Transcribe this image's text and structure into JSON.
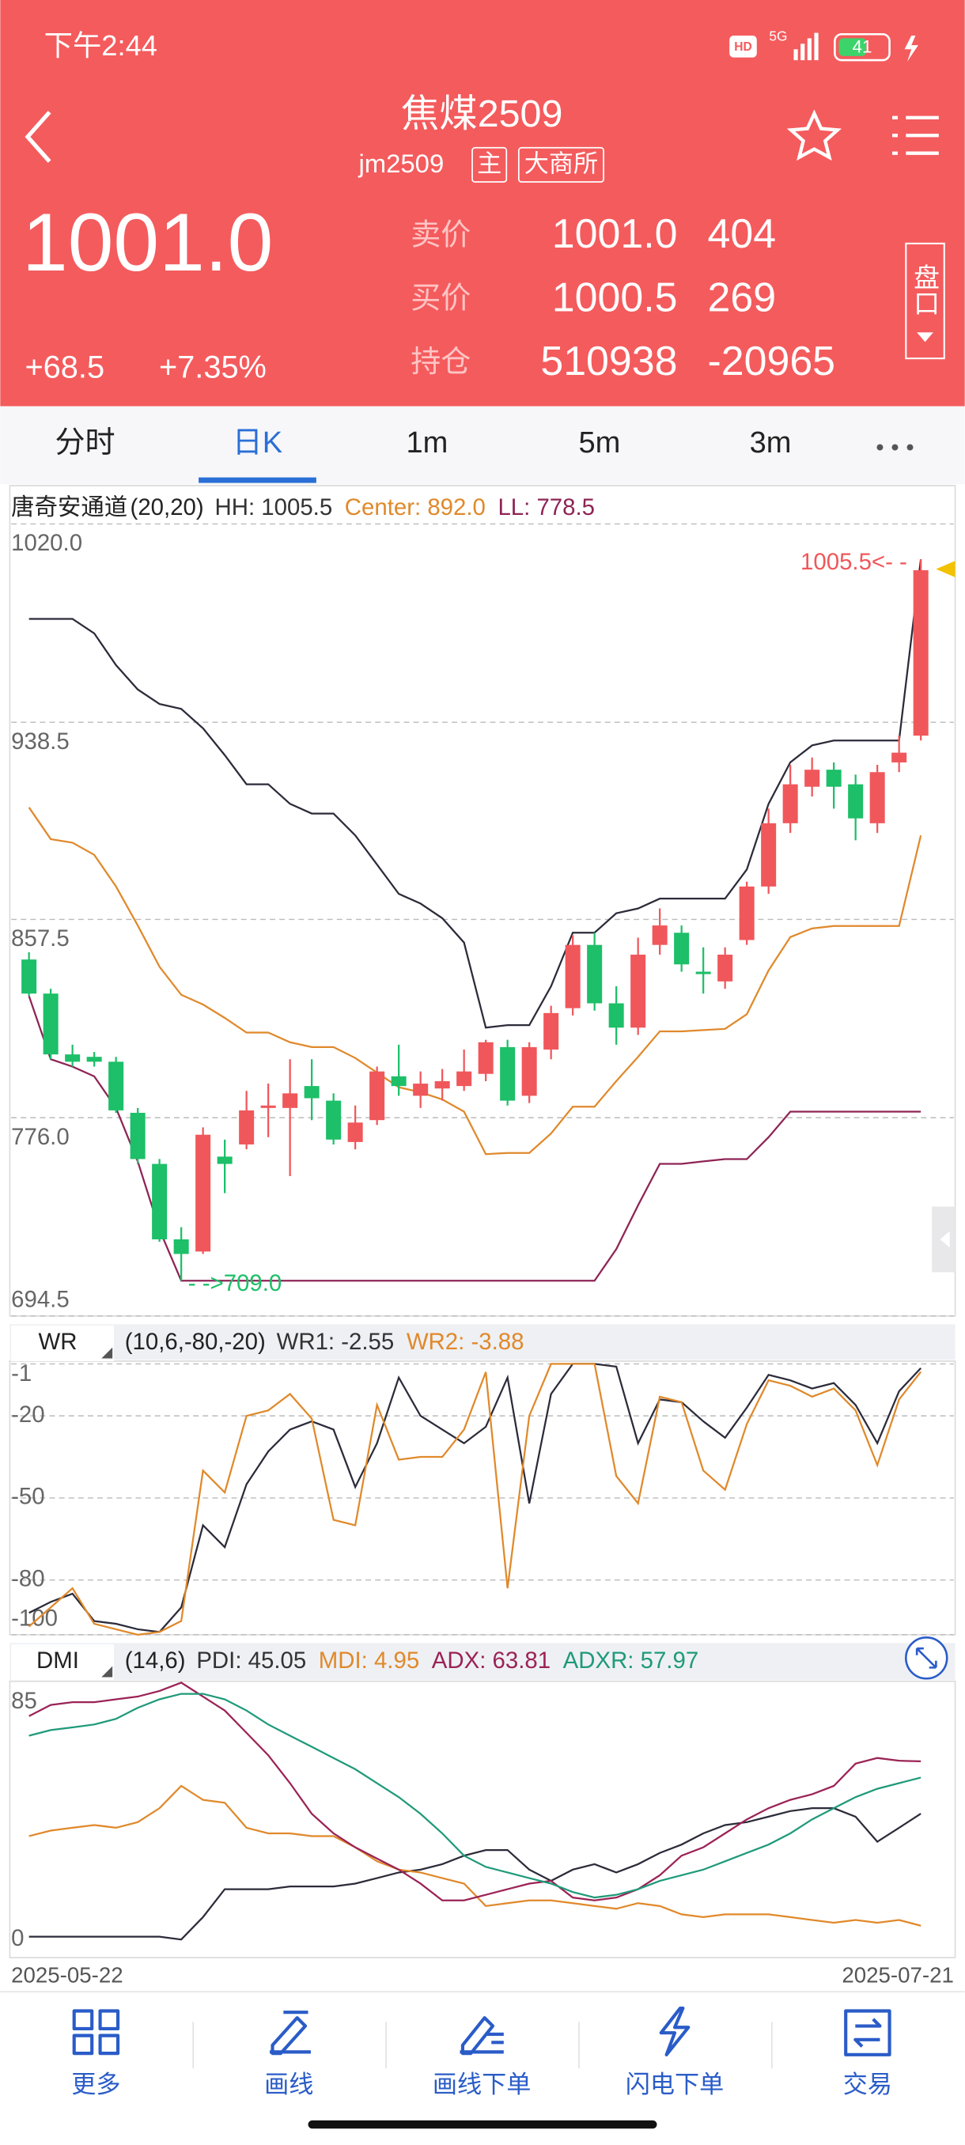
{
  "status_bar": {
    "time": "下午2:44",
    "hd": "HD",
    "network": "5G",
    "battery": "41"
  },
  "header": {
    "title": "焦煤2509",
    "code": "jm2509",
    "tags": [
      "主",
      "大商所"
    ],
    "price": "1001.0",
    "change": "+68.5",
    "change_pct": "+7.35%",
    "panel_button": "盘口"
  },
  "quote": {
    "rows": [
      [
        "卖价",
        "1001.0",
        "404"
      ],
      [
        "买价",
        "1000.5",
        "269"
      ],
      [
        "持仓",
        "510938",
        "-20965"
      ]
    ]
  },
  "tabs": {
    "items": [
      "分时",
      "日K",
      "1m",
      "5m",
      "3m"
    ],
    "active": 1
  },
  "chart_data": [
    {
      "type": "candlestick",
      "title": "唐奇安通道",
      "params": "(20,20)",
      "open": [
        841,
        827,
        802,
        801,
        799,
        778,
        757,
        726,
        721,
        760,
        765,
        780,
        780,
        789,
        783,
        766,
        775,
        793,
        785,
        788,
        789,
        794,
        805,
        785,
        804,
        821,
        847,
        823,
        813,
        847,
        852,
        836,
        832,
        849,
        871,
        897,
        912,
        919,
        913,
        897,
        922,
        933
      ],
      "high": [
        844,
        829,
        806,
        803,
        801,
        780,
        759,
        731,
        772,
        767,
        787,
        790,
        800,
        800,
        786,
        781,
        797,
        806,
        795,
        796,
        804,
        808,
        808,
        807,
        822,
        851,
        852,
        830,
        850,
        862,
        855,
        846,
        846,
        873,
        903,
        921,
        924,
        922,
        917,
        921,
        933,
        1005.5
      ],
      "low": [
        826,
        800,
        797,
        797,
        778,
        757,
        725,
        709,
        720,
        745,
        763,
        768,
        752,
        775,
        765,
        763,
        773,
        785,
        780,
        783,
        787,
        791,
        781,
        782,
        800,
        818,
        820,
        806,
        810,
        843,
        836,
        827,
        829,
        847,
        868,
        893,
        908,
        903,
        890,
        893,
        918,
        931
      ],
      "close": [
        827,
        802,
        799,
        799,
        779,
        759,
        726,
        720,
        769,
        757,
        779,
        781,
        786,
        784,
        767,
        774,
        795,
        789,
        790,
        791,
        795,
        807,
        783,
        805,
        819,
        847,
        823,
        813,
        843,
        855,
        839,
        835,
        843,
        871,
        897,
        913,
        919,
        912,
        899,
        918,
        926,
        1001
      ],
      "up_color": "#f0575b",
      "down_color": "#1dbf68",
      "series": [
        {
          "name": "HH: 1005.5",
          "color": "#2b2b3a",
          "values": [
            981,
            981,
            981,
            975,
            962,
            952,
            946,
            944,
            936,
            925,
            913,
            913,
            905,
            901,
            901,
            892,
            880,
            868,
            864,
            858,
            848,
            813,
            814,
            814,
            830,
            852,
            852,
            860,
            862,
            866,
            866,
            866,
            866,
            878,
            905,
            922,
            929,
            931,
            931,
            931,
            931,
            1005.5
          ]
        },
        {
          "name": "Center: 892.0",
          "color": "#e0892b",
          "values": [
            903.5,
            890.5,
            889,
            884,
            871,
            855,
            838,
            826.5,
            822.5,
            817,
            811,
            811,
            807,
            805,
            805,
            800.5,
            794.5,
            788.5,
            786.5,
            783.5,
            778.5,
            761,
            761.5,
            761.5,
            769.5,
            780.5,
            780.5,
            791,
            801,
            811.5,
            811.5,
            812,
            812.5,
            818.5,
            836.5,
            850.25,
            853.75,
            854.75,
            854.75,
            854.75,
            854.75,
            892
          ]
        },
        {
          "name": "LL: 778.5",
          "color": "#8e2455",
          "values": [
            826,
            800,
            797,
            793,
            780,
            758,
            730,
            709,
            709,
            709,
            709,
            709,
            709,
            709,
            709,
            709,
            709,
            709,
            709,
            709,
            709,
            709,
            709,
            709,
            709,
            709,
            709,
            722,
            740,
            757,
            757,
            758,
            759,
            759,
            768,
            778.5,
            778.5,
            778.5,
            778.5,
            778.5,
            778.5,
            778.5
          ]
        }
      ],
      "ylim": [
        694.5,
        1020
      ],
      "yticks": [
        {
          "value": 1020,
          "label": "1020.0"
        },
        938.5,
        857.5,
        {
          "value": 776,
          "label": "776.0"
        },
        694.5
      ],
      "grid": true,
      "annotations": [
        {
          "text": "1005.5<- -",
          "color": "#f0575b"
        },
        {
          "text": "- ->709.0",
          "color": "#1dbf68"
        }
      ]
    },
    {
      "type": "line",
      "title": "WR",
      "params": "(10,6,-80,-20)",
      "series": [
        {
          "name": "WR1: -2.55",
          "color": "#2b2b3a",
          "values": [
            -92,
            -88,
            -85,
            -95,
            -96,
            -98,
            -99,
            -90,
            -60,
            -68,
            -45,
            -33,
            -25,
            -22,
            -25,
            -46,
            -30,
            -6,
            -20,
            -25,
            -30,
            -24,
            -6,
            -52,
            -12,
            -1,
            -1,
            -2,
            -30,
            -14,
            -15,
            -22,
            -28,
            -17,
            -5,
            -7,
            -10,
            -8,
            -16,
            -30,
            -11,
            -2.55
          ]
        },
        {
          "name": "WR2: -3.88",
          "color": "#e0892b",
          "values": [
            -97,
            -90,
            -83,
            -96,
            -98,
            -100,
            -99,
            -95,
            -40,
            -48,
            -20,
            -18,
            -12,
            -21,
            -58,
            -60,
            -16,
            -36,
            -35,
            -35,
            -25,
            -4,
            -83,
            -20,
            -1,
            -1,
            -1,
            -42,
            -52,
            -13,
            -15,
            -40,
            -47,
            -23,
            -7,
            -9,
            -13,
            -10,
            -18,
            -38,
            -14,
            -3.88
          ]
        }
      ],
      "ylim": [
        -100,
        0
      ],
      "yticks": [
        -1,
        -20,
        -50,
        -80,
        -100
      ],
      "grid": true
    },
    {
      "type": "line",
      "title": "DMI",
      "params": "(14,6)",
      "categories": [
        "2025-05-22",
        null,
        null,
        null,
        null,
        null,
        null,
        null,
        null,
        null,
        null,
        null,
        null,
        null,
        null,
        null,
        null,
        null,
        null,
        null,
        null,
        null,
        null,
        null,
        null,
        null,
        null,
        null,
        null,
        null,
        null,
        null,
        null,
        null,
        null,
        null,
        null,
        null,
        null,
        null,
        null,
        "2025-07-21"
      ],
      "series": [
        {
          "name": "PDI: 45.05",
          "color": "#2b2b3a",
          "values": [
            1,
            1,
            1,
            1,
            1,
            1,
            1,
            0,
            8,
            18,
            18,
            18,
            19,
            19,
            19,
            20,
            22,
            24,
            25,
            27,
            30,
            32,
            32,
            25,
            21,
            25,
            27,
            24,
            27,
            31,
            34,
            38,
            41,
            42,
            44,
            46,
            47,
            47,
            44,
            35,
            40,
            45.05
          ]
        },
        {
          "name": "MDI: 4.95",
          "color": "#e0892b",
          "values": [
            37,
            39,
            40,
            41,
            40,
            42,
            47,
            55,
            50,
            49,
            40,
            38,
            38,
            37,
            37,
            33,
            28,
            25,
            24,
            22,
            20,
            12,
            13,
            14,
            14,
            13,
            12,
            11,
            13,
            12,
            9,
            8,
            9,
            9,
            9,
            8,
            7,
            6,
            7,
            6,
            7,
            4.95
          ]
        },
        {
          "name": "ADX: 63.81",
          "color": "#9b2356",
          "values": [
            80,
            84,
            85,
            85,
            86,
            87,
            89,
            92,
            87,
            82,
            74,
            66,
            56,
            45,
            38,
            33,
            29,
            25,
            20,
            14,
            14,
            16,
            18,
            20,
            21,
            15,
            14,
            15,
            18,
            23,
            30,
            33,
            38,
            43,
            47,
            50,
            52,
            55,
            63,
            65,
            64,
            63.81
          ]
        },
        {
          "name": "ADXR: 57.97",
          "color": "#1f9a7a",
          "values": [
            73,
            75,
            76,
            77,
            79,
            83,
            86,
            88,
            88,
            86,
            82,
            77,
            73,
            69,
            65,
            61,
            56,
            51,
            45,
            38,
            30,
            26,
            24,
            22,
            20,
            17,
            15,
            16,
            18,
            21,
            23,
            25,
            28,
            31,
            34,
            38,
            43,
            47,
            51,
            54,
            56,
            57.97
          ]
        }
      ],
      "ylim": [
        -6,
        92
      ],
      "yticks": [
        85,
        0
      ],
      "grid": false
    }
  ],
  "bottom_nav": {
    "items": [
      "更多",
      "画线",
      "画线下单",
      "闪电下单",
      "交易"
    ]
  }
}
